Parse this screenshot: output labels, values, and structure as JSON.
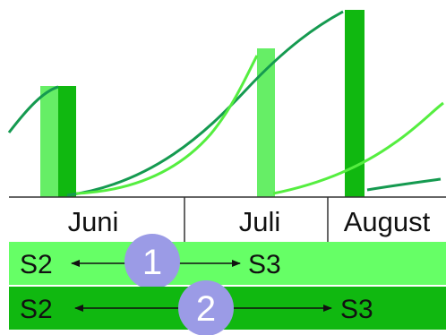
{
  "timeline": {
    "months": [
      {
        "label": "Juni"
      },
      {
        "label": "Juli"
      },
      {
        "label": "August"
      }
    ]
  },
  "colors": {
    "light_green": "#66ff66",
    "dark_green": "#10b810",
    "bar_light": "#66ee66",
    "curve_dark": "#159a50",
    "curve_light": "#55ee40",
    "badge": "#9b9be6",
    "axis": "#333333",
    "text": "#111111"
  },
  "bands": [
    {
      "badge": "1",
      "from": "S2",
      "to": "S3"
    },
    {
      "badge": "2",
      "from": "S2",
      "to": "S3"
    }
  ]
}
